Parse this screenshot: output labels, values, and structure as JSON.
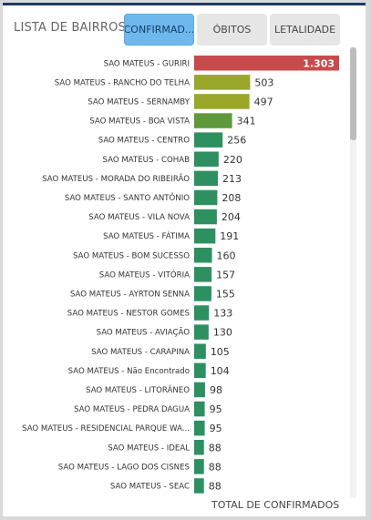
{
  "panel": {
    "title": "LISTA DE BAIRROS",
    "footer": "TOTAL DE CONFIRMADOS"
  },
  "tabs": [
    {
      "label": "CONFIRMAD...",
      "active": true
    },
    {
      "label": "ÓBITOS",
      "active": false
    },
    {
      "label": "LETALIDADE",
      "active": false
    }
  ],
  "colors": {
    "top": "#c84b4b",
    "high": "#9aa62a",
    "mid": "#5e9a3c",
    "low": "#2e9060"
  },
  "chart_data": {
    "type": "bar",
    "orientation": "horizontal",
    "categories": [
      "SAO MATEUS - GURIRI",
      "SAO MATEUS - RANCHO DO TELHA",
      "SAO MATEUS - SERNAMBY",
      "SAO MATEUS - BOA VISTA",
      "SAO MATEUS - CENTRO",
      "SAO MATEUS - COHAB",
      "SAO MATEUS - MORADA DO RIBEIRÃO",
      "SAO MATEUS - SANTO ANTÔNIO",
      "SAO MATEUS - VILA NOVA",
      "SAO MATEUS - FÁTIMA",
      "SAO MATEUS - BOM SUCESSO",
      "SAO MATEUS - VITÓRIA",
      "SAO MATEUS - AYRTON SENNA",
      "SAO MATEUS - NESTOR GOMES",
      "SAO MATEUS - AVIAÇÃO",
      "SAO MATEUS - CARAPINA",
      "SAO MATEUS - Não Encontrado",
      "SAO MATEUS - LITORÂNEO",
      "SAO MATEUS - PEDRA DAGUA",
      "SAO MATEUS - RESIDENCIAL PARQUE WA...",
      "SAO MATEUS - IDEAL",
      "SAO MATEUS - LAGO DOS CISNES",
      "SAO MATEUS - SEAC"
    ],
    "values": [
      1303,
      503,
      497,
      341,
      256,
      220,
      213,
      208,
      204,
      191,
      160,
      157,
      155,
      133,
      130,
      105,
      104,
      98,
      95,
      95,
      88,
      88,
      88
    ],
    "value_labels": [
      "1.303",
      "503",
      "497",
      "341",
      "256",
      "220",
      "213",
      "208",
      "204",
      "191",
      "160",
      "157",
      "155",
      "133",
      "130",
      "105",
      "104",
      "98",
      "95",
      "95",
      "88",
      "88",
      "88"
    ],
    "xlim": [
      0,
      1303
    ],
    "grid": false,
    "legend": "none"
  }
}
